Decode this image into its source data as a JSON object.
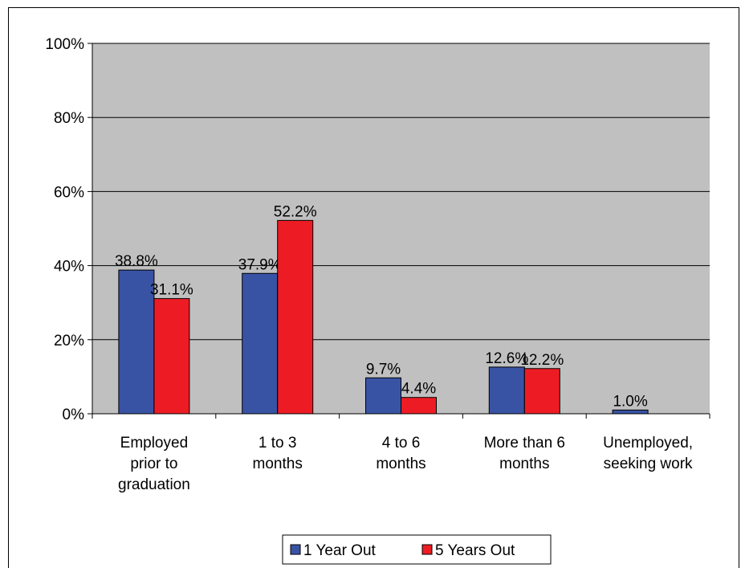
{
  "chart_data": {
    "type": "bar",
    "categories": [
      [
        "Employed",
        "prior to",
        "graduation"
      ],
      [
        "1 to 3",
        "months"
      ],
      [
        "4 to 6",
        "months"
      ],
      [
        "More than 6",
        "months"
      ],
      [
        "Unemployed,",
        "seeking work"
      ]
    ],
    "series": [
      {
        "name": "1 Year Out",
        "color": "#3953A4",
        "values": [
          38.8,
          37.9,
          9.7,
          12.6,
          1.0
        ],
        "labels": [
          "38.8%",
          "37.9%",
          "9.7%",
          "12.6%",
          "1.0%"
        ]
      },
      {
        "name": "5 Years Out",
        "color": "#ED1C24",
        "values": [
          31.1,
          52.2,
          4.4,
          12.2,
          null
        ],
        "labels": [
          "31.1%",
          "52.2%",
          "4.4%",
          "12.2%",
          ""
        ]
      }
    ],
    "ylim": [
      0,
      100
    ],
    "yticks": [
      0,
      20,
      40,
      60,
      80,
      100
    ],
    "ytick_labels": [
      "0%",
      "20%",
      "40%",
      "60%",
      "80%",
      "100%"
    ],
    "plot_background": "#C0C0C0",
    "grid": true,
    "legend_position": "bottom",
    "title": "",
    "xlabel": "",
    "ylabel": ""
  }
}
